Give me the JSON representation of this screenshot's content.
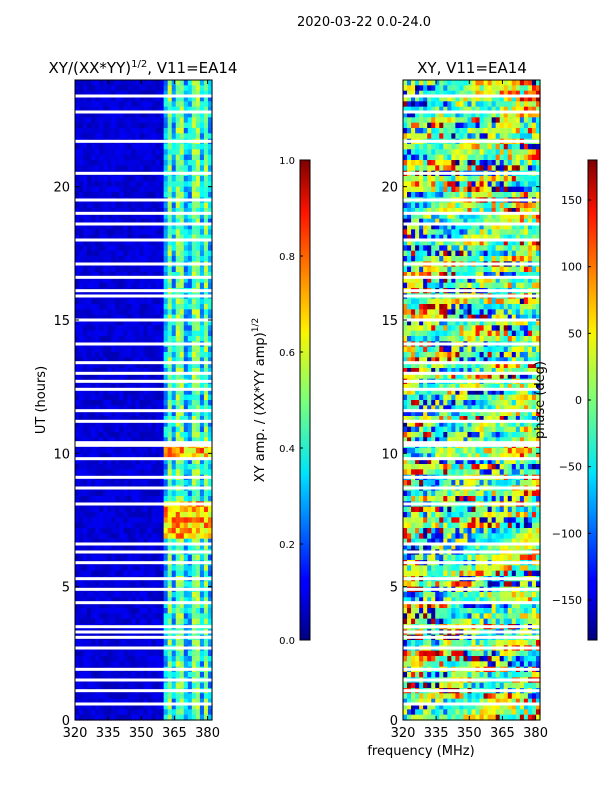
{
  "suptitle": "2020-03-22 0.0-24.0",
  "shared_xlabel": "frequency (MHz)",
  "chart_data": [
    {
      "type": "heatmap",
      "title_main": "XY/(XX*YY)",
      "title_sup": "1/2",
      "title_tail": ", V11=EA14",
      "ylabel": "UT (hours)",
      "xlim": [
        320,
        382
      ],
      "ylim": [
        0,
        24
      ],
      "xticks": [
        320,
        335,
        350,
        365,
        380
      ],
      "yticks": [
        0,
        5,
        10,
        15,
        20
      ],
      "active_band_mhz": [
        360,
        382
      ],
      "band_columns_mhz": [
        362,
        366,
        369,
        373,
        376,
        379
      ],
      "elevated_ut_ranges": [
        [
          6.7,
          8.2
        ],
        [
          9.8,
          10.3
        ]
      ],
      "flagged_ut_rows": [
        0.6,
        1.1,
        1.5,
        1.9,
        2.7,
        3.1,
        3.3,
        3.5,
        4.4,
        4.9,
        5.3,
        5.9,
        6.3,
        6.6,
        8.1,
        8.7,
        9.1,
        9.8,
        10.3,
        10.4,
        11.2,
        11.6,
        12.4,
        12.7,
        13.0,
        13.4,
        14.1,
        15.0,
        15.9,
        16.1,
        16.6,
        17.1,
        18.0,
        18.6,
        19.0,
        19.5,
        20.5,
        21.7,
        22.8,
        23.4
      ],
      "colorbar": {
        "label_main": "XY amp. / (XX*YY amp)",
        "label_sup": "1/2",
        "min": 0.0,
        "max": 1.0,
        "tick_labels": [
          "0.0",
          "0.2",
          "0.4",
          "0.6",
          "0.8",
          "1.0"
        ]
      }
    },
    {
      "type": "heatmap",
      "title": "XY, V11=EA14",
      "ylabel": "",
      "xlim": [
        320,
        382
      ],
      "ylim": [
        0,
        24
      ],
      "xticks": [
        320,
        335,
        350,
        365,
        380
      ],
      "yticks": [
        0,
        5,
        10,
        15,
        20
      ],
      "value_range_deg": [
        -180,
        180
      ],
      "flagged_ut_rows": [
        0.6,
        1.1,
        1.5,
        1.9,
        2.7,
        3.1,
        3.3,
        3.5,
        4.4,
        4.9,
        5.3,
        5.9,
        6.3,
        6.6,
        8.1,
        8.7,
        9.1,
        9.8,
        10.3,
        10.4,
        11.2,
        11.6,
        12.4,
        12.7,
        13.0,
        13.4,
        14.1,
        15.0,
        15.9,
        16.1,
        16.6,
        17.1,
        18.0,
        18.6,
        19.0,
        19.5,
        20.5,
        21.7,
        22.8,
        23.4
      ],
      "colorbar": {
        "label": "phase (deg)",
        "min": -180,
        "max": 180,
        "ticks": [
          -150,
          -100,
          -50,
          0,
          50,
          100,
          150
        ],
        "tick_labels": [
          "−150",
          "−100",
          "−50",
          "0",
          "50",
          "100",
          "150"
        ]
      }
    }
  ]
}
